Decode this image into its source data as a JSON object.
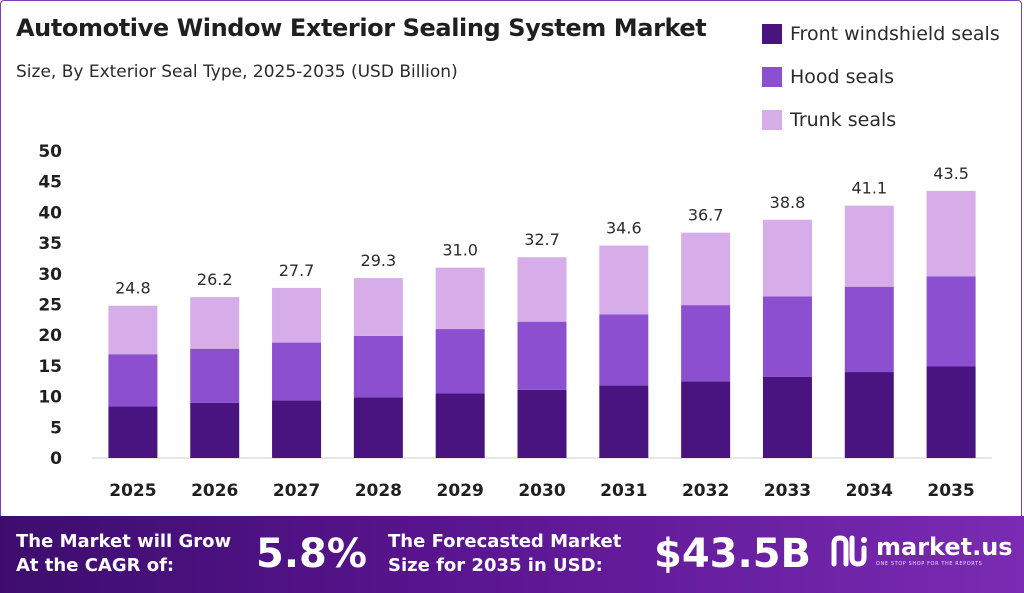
{
  "chart_data": {
    "type": "bar",
    "stacked": true,
    "title": "Automotive Window Exterior Sealing System Market",
    "subtitle": "Size, By Exterior Seal Type, 2025-2035 (USD Billion)",
    "categories": [
      "2025",
      "2026",
      "2027",
      "2028",
      "2029",
      "2030",
      "2031",
      "2032",
      "2033",
      "2034",
      "2035"
    ],
    "totals": [
      "24.8",
      "26.2",
      "27.7",
      "29.3",
      "31.0",
      "32.7",
      "34.6",
      "36.7",
      "38.8",
      "41.1",
      "43.5"
    ],
    "series": [
      {
        "name": "Front windshield seals",
        "color": "#4a1480",
        "values": [
          8.4,
          9.0,
          9.4,
          9.9,
          10.5,
          11.1,
          11.8,
          12.5,
          13.2,
          14.0,
          14.9
        ]
      },
      {
        "name": "Hood seals",
        "color": "#8b4fcf",
        "values": [
          8.5,
          8.8,
          9.4,
          10.0,
          10.5,
          11.1,
          11.6,
          12.4,
          13.1,
          13.9,
          14.7
        ]
      },
      {
        "name": "Trunk seals",
        "color": "#d6ade8",
        "values": [
          7.9,
          8.4,
          8.9,
          9.4,
          10.0,
          10.5,
          11.2,
          11.8,
          12.5,
          13.2,
          13.9
        ]
      }
    ],
    "ylim": [
      0,
      50
    ],
    "yticks": [
      0,
      5,
      10,
      15,
      20,
      25,
      30,
      35,
      40,
      45,
      50
    ],
    "xlabel": "",
    "ylabel": "",
    "grid": false,
    "legend": "top-right"
  },
  "footer": {
    "cagr_label": "The Market will Grow\nAt the CAGR of:",
    "cagr_value": "5.8%",
    "forecast_label": "The Forecasted Market\nSize for 2035 in USD:",
    "forecast_value": "$43.5B",
    "brand_name": "market.us",
    "brand_tagline": "ONE STOP SHOP FOR THE REPORTS",
    "logo_icon": "market-us-logo-icon"
  }
}
